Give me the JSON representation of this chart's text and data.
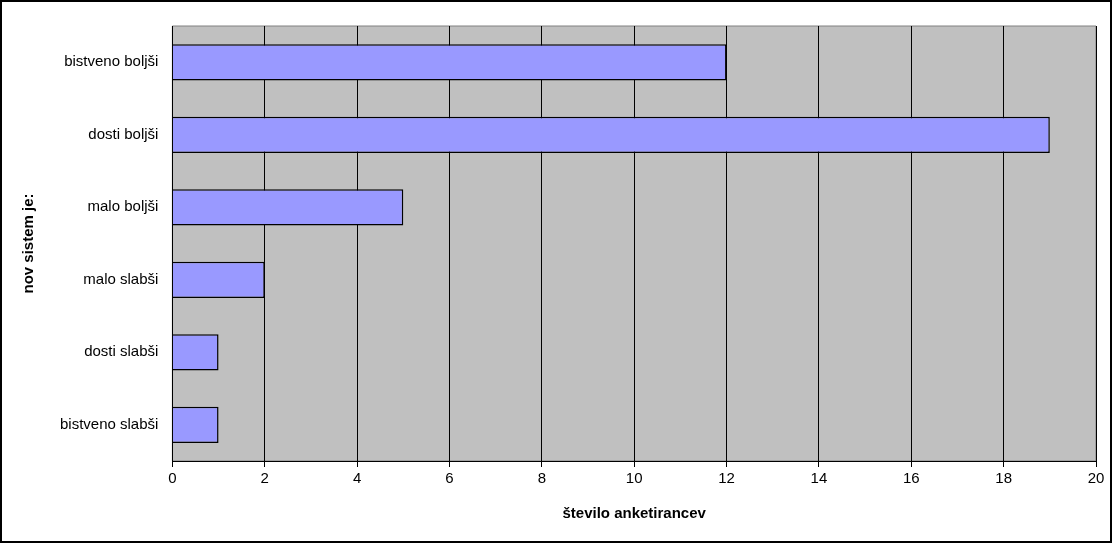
{
  "chart_data": {
    "type": "bar",
    "orientation": "horizontal",
    "xlabel": "število anketirancev",
    "ylabel": "nov sistem je:",
    "categories": [
      "bistveno boljši",
      "dosti boljši",
      "malo boljši",
      "malo slabši",
      "dosti slabši",
      "bistveno slabši"
    ],
    "values": [
      12,
      19,
      5,
      2,
      1,
      1
    ],
    "color": "#9999ff",
    "xlim": [
      0,
      20
    ],
    "xticks": [
      0,
      2,
      4,
      6,
      8,
      10,
      12,
      14,
      16,
      18,
      20
    ],
    "grid": "x",
    "legend": false
  }
}
